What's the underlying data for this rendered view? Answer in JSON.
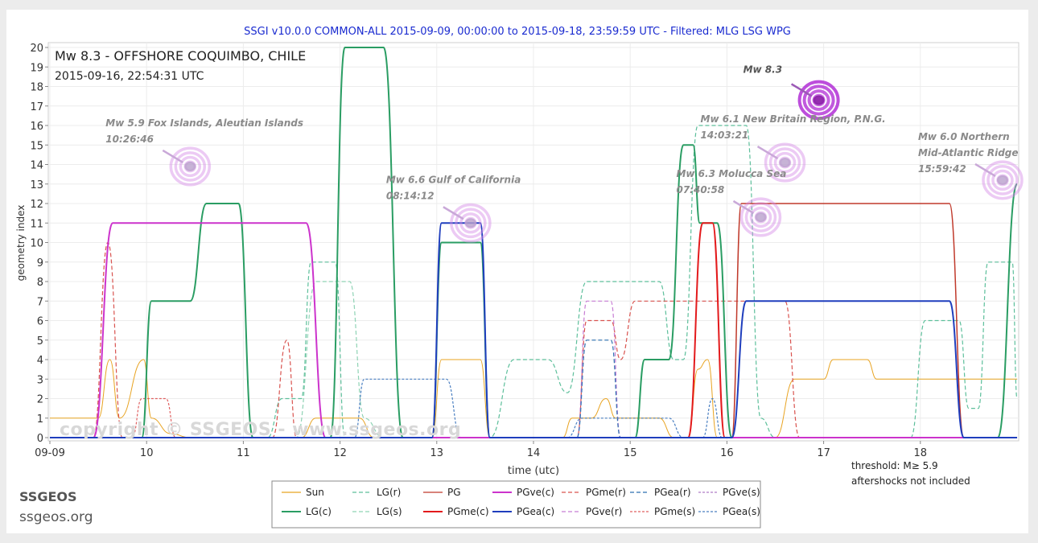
{
  "chart_data": {
    "type": "line",
    "title": "SSGI v10.0.0 COMMON-ALL 2015-09-09, 00:00:00 to 2015-09-18, 23:59:59 UTC - Filtered: MLG LSG WPG",
    "event_title": "Mw 8.3 - OFFSHORE COQUIMBO, CHILE",
    "event_time": "2015-09-16, 22:54:31 UTC",
    "xlabel": "time (utc)",
    "ylabel": "geometry index",
    "xlim": [
      0,
      10
    ],
    "ylim": [
      0,
      20
    ],
    "x_ticks": [
      {
        "x": 0,
        "label": "09-09"
      },
      {
        "x": 1,
        "label": "10"
      },
      {
        "x": 2,
        "label": "11"
      },
      {
        "x": 3,
        "label": "12"
      },
      {
        "x": 4,
        "label": "13"
      },
      {
        "x": 5,
        "label": "14"
      },
      {
        "x": 6,
        "label": "15"
      },
      {
        "x": 7,
        "label": "16"
      },
      {
        "x": 8,
        "label": "17"
      },
      {
        "x": 9,
        "label": "18"
      }
    ],
    "y_ticks": [
      0,
      1,
      2,
      3,
      4,
      5,
      6,
      7,
      8,
      9,
      10,
      11,
      12,
      13,
      14,
      15,
      16,
      17,
      18,
      19,
      20
    ],
    "notes": [
      "threshold: M≥ 5.9",
      "aftershocks not included"
    ],
    "series": [
      {
        "name": "Sun",
        "color": "#e8a321",
        "dash": "solid",
        "width": 1,
        "points": [
          [
            0,
            1
          ],
          [
            0.5,
            1
          ],
          [
            0.62,
            4
          ],
          [
            0.72,
            1
          ],
          [
            0.97,
            4
          ],
          [
            1.05,
            1
          ],
          [
            1.25,
            0.2
          ],
          [
            1.45,
            0
          ],
          [
            2.6,
            0
          ],
          [
            2.75,
            1
          ],
          [
            3.2,
            1
          ],
          [
            3.35,
            0
          ],
          [
            3.95,
            0
          ],
          [
            4.05,
            4
          ],
          [
            4.45,
            4
          ],
          [
            4.55,
            0
          ],
          [
            5.3,
            0
          ],
          [
            5.4,
            1
          ],
          [
            5.6,
            1
          ],
          [
            5.75,
            2
          ],
          [
            5.85,
            1
          ],
          [
            6.1,
            1
          ],
          [
            6.3,
            1
          ],
          [
            6.45,
            0
          ],
          [
            6.6,
            0
          ],
          [
            6.7,
            3.5
          ],
          [
            6.8,
            4
          ],
          [
            6.9,
            0
          ],
          [
            7.5,
            0
          ],
          [
            7.7,
            3
          ],
          [
            8.0,
            3
          ],
          [
            8.1,
            4
          ],
          [
            8.45,
            4
          ],
          [
            8.55,
            3
          ],
          [
            10,
            3
          ]
        ]
      },
      {
        "name": "LG(c)",
        "color": "#2a9d63",
        "dash": "solid",
        "width": 2,
        "points": [
          [
            0,
            0
          ],
          [
            0.95,
            0
          ],
          [
            1.05,
            7
          ],
          [
            1.45,
            7
          ],
          [
            1.62,
            12
          ],
          [
            1.95,
            12
          ],
          [
            2.1,
            0
          ],
          [
            2.9,
            0
          ],
          [
            3.05,
            20
          ],
          [
            3.45,
            20
          ],
          [
            3.65,
            0
          ],
          [
            3.95,
            0
          ],
          [
            4.05,
            10
          ],
          [
            4.45,
            10
          ],
          [
            4.55,
            0
          ],
          [
            6.05,
            0
          ],
          [
            6.15,
            4
          ],
          [
            6.4,
            4
          ],
          [
            6.55,
            15
          ],
          [
            6.65,
            15
          ],
          [
            6.72,
            11
          ],
          [
            6.9,
            11
          ],
          [
            7.05,
            0
          ],
          [
            9.8,
            0
          ],
          [
            10,
            13
          ]
        ]
      },
      {
        "name": "LG(r)",
        "color": "#5dbf9b",
        "dash": "dashed",
        "width": 1.2,
        "points": [
          [
            0,
            0
          ],
          [
            2.25,
            0
          ],
          [
            2.4,
            2
          ],
          [
            2.6,
            2
          ],
          [
            2.7,
            9
          ],
          [
            2.95,
            9
          ],
          [
            3.05,
            0
          ],
          [
            4.35,
            0
          ],
          [
            4.55,
            0
          ],
          [
            4.8,
            4
          ],
          [
            5.15,
            4
          ],
          [
            5.35,
            2.3
          ],
          [
            5.55,
            8
          ],
          [
            6.3,
            8
          ],
          [
            6.45,
            4
          ],
          [
            6.55,
            4
          ],
          [
            6.7,
            16
          ],
          [
            7.2,
            16
          ],
          [
            7.35,
            1
          ],
          [
            7.5,
            0
          ],
          [
            8.9,
            0
          ],
          [
            9.05,
            6
          ],
          [
            9.4,
            6
          ],
          [
            9.5,
            1.5
          ],
          [
            9.6,
            1.5
          ],
          [
            9.7,
            9
          ],
          [
            9.95,
            9
          ],
          [
            10,
            2
          ]
        ]
      },
      {
        "name": "LG(s)",
        "color": "#8fd3b5",
        "dash": "dashed",
        "width": 1.2,
        "points": [
          [
            0,
            0
          ],
          [
            2.55,
            0
          ],
          [
            2.75,
            8
          ],
          [
            3.1,
            8
          ],
          [
            3.25,
            1
          ],
          [
            3.45,
            0
          ],
          [
            10,
            0
          ]
        ]
      },
      {
        "name": "PG",
        "color": "#c0392b",
        "dash": "solid",
        "width": 1.5,
        "points": [
          [
            0,
            0
          ],
          [
            7.05,
            0
          ],
          [
            7.15,
            12
          ],
          [
            9.3,
            12
          ],
          [
            9.45,
            0
          ],
          [
            10,
            0
          ]
        ]
      },
      {
        "name": "PGme(c)",
        "color": "#e31a1c",
        "dash": "solid",
        "width": 2,
        "points": [
          [
            0,
            0
          ],
          [
            6.6,
            0
          ],
          [
            6.75,
            11
          ],
          [
            6.85,
            11
          ],
          [
            6.98,
            0
          ],
          [
            10,
            0
          ]
        ]
      },
      {
        "name": "PGme(r)",
        "color": "#d9534f",
        "dash": "dashed",
        "width": 1.2,
        "points": [
          [
            0,
            0
          ],
          [
            0.45,
            0
          ],
          [
            0.6,
            10
          ],
          [
            0.75,
            0
          ],
          [
            2.3,
            0
          ],
          [
            2.45,
            5
          ],
          [
            2.55,
            0
          ],
          [
            5.45,
            0
          ],
          [
            5.55,
            6
          ],
          [
            5.8,
            6
          ],
          [
            5.9,
            4
          ],
          [
            6.05,
            7
          ],
          [
            7.6,
            7
          ],
          [
            7.75,
            0
          ],
          [
            10,
            0
          ]
        ]
      },
      {
        "name": "PGme(s)",
        "color": "#e06060",
        "dash": "dotted",
        "width": 1.2,
        "points": [
          [
            0,
            0
          ],
          [
            0.85,
            0
          ],
          [
            0.95,
            2
          ],
          [
            1.2,
            2
          ],
          [
            1.3,
            0
          ],
          [
            10,
            0
          ]
        ]
      },
      {
        "name": "PGve(c)",
        "color": "#cc33cc",
        "dash": "solid",
        "width": 2,
        "points": [
          [
            0,
            0
          ],
          [
            0.45,
            0
          ],
          [
            0.65,
            11
          ],
          [
            2.65,
            11
          ],
          [
            2.85,
            0
          ],
          [
            10,
            0
          ]
        ]
      },
      {
        "name": "PGve(r)",
        "color": "#c77dd4",
        "dash": "dashed",
        "width": 1.2,
        "points": [
          [
            0,
            0
          ],
          [
            5.45,
            0
          ],
          [
            5.55,
            7
          ],
          [
            5.8,
            7
          ],
          [
            5.9,
            0
          ],
          [
            10,
            0
          ]
        ]
      },
      {
        "name": "PGve(s)",
        "color": "#b07cc6",
        "dash": "dotted",
        "width": 1.2,
        "points": [
          [
            0,
            0
          ],
          [
            10,
            0
          ]
        ]
      },
      {
        "name": "PGea(c)",
        "color": "#1f3ebd",
        "dash": "solid",
        "width": 2,
        "points": [
          [
            0,
            0
          ],
          [
            3.95,
            0
          ],
          [
            4.05,
            11
          ],
          [
            4.45,
            11
          ],
          [
            4.55,
            0
          ],
          [
            7.05,
            0
          ],
          [
            7.2,
            7
          ],
          [
            9.3,
            7
          ],
          [
            9.45,
            0
          ],
          [
            10,
            0
          ]
        ]
      },
      {
        "name": "PGea(r)",
        "color": "#2c6fb0",
        "dash": "dashed",
        "width": 1.2,
        "points": [
          [
            0,
            0
          ],
          [
            5.45,
            0
          ],
          [
            5.55,
            5
          ],
          [
            5.8,
            5
          ],
          [
            5.9,
            0
          ],
          [
            10,
            0
          ]
        ]
      },
      {
        "name": "PGea(s)",
        "color": "#4a7fc1",
        "dash": "dotted",
        "width": 1.2,
        "points": [
          [
            0,
            0
          ],
          [
            3.15,
            0
          ],
          [
            3.25,
            3
          ],
          [
            4.1,
            3
          ],
          [
            4.25,
            0
          ],
          [
            5.35,
            0
          ],
          [
            5.5,
            1
          ],
          [
            6.4,
            1
          ],
          [
            6.55,
            0
          ],
          [
            6.75,
            0
          ],
          [
            6.85,
            2
          ],
          [
            6.95,
            0
          ],
          [
            10,
            0
          ]
        ]
      }
    ],
    "legend": [
      [
        "Sun",
        "LG(r)",
        "PG",
        "PGve(c)",
        "PGme(r)",
        "PGea(r)",
        "PGve(s)"
      ],
      [
        "LG(c)",
        "LG(s)",
        "PGme(c)",
        "PGea(c)",
        "PGve(r)",
        "PGme(s)",
        "PGea(s)"
      ]
    ],
    "annotations": [
      {
        "label": "Mw 5.9 Fox Islands, Aleutian Islands",
        "time": "10:26:46",
        "x": 1.45,
        "y": 13.9,
        "highlight": false
      },
      {
        "label": "Mw 6.6 Gulf of California",
        "time": "08:14:12",
        "x": 4.35,
        "y": 11.0,
        "highlight": false
      },
      {
        "label": "Mw 8.3",
        "time": "",
        "x": 7.95,
        "y": 17.3,
        "highlight": true
      },
      {
        "label": "Mw 6.1 New Britain Region, P.N.G.",
        "time": "14:03:21",
        "x": 7.6,
        "y": 14.1,
        "highlight": false
      },
      {
        "label": "Mw 6.3 Molucca Sea",
        "time": "07:40:58",
        "x": 7.35,
        "y": 11.3,
        "highlight": false
      },
      {
        "label": "Mw 6.0 Northern",
        "label2": "Mid-Atlantic Ridge",
        "time": "15:59:42",
        "x": 9.85,
        "y": 13.2,
        "highlight": false
      }
    ]
  },
  "watermark": "copyright © SSGEOS - www.ssgeos.org",
  "brand": {
    "name": "SSGEOS",
    "url": "ssgeos.org"
  }
}
